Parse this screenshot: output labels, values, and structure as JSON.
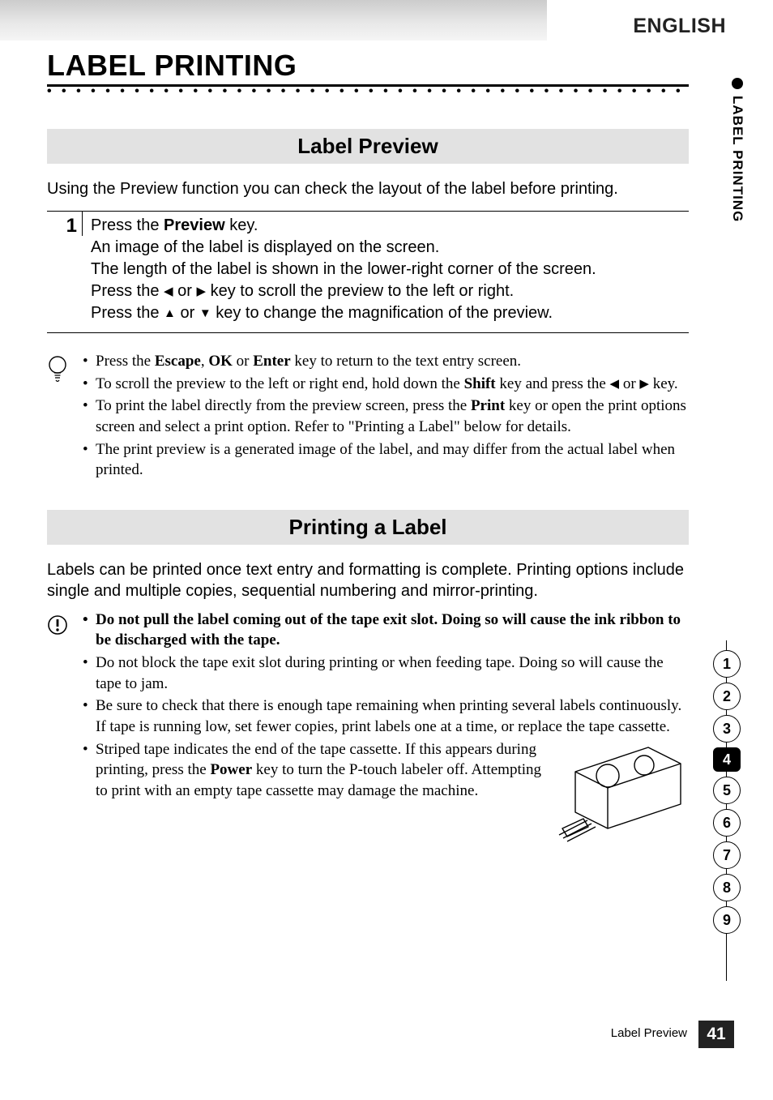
{
  "header": {
    "language": "ENGLISH",
    "chapter_title": "LABEL PRINTING"
  },
  "side_tab": {
    "label": "LABEL PRINTING"
  },
  "sections": {
    "preview": {
      "heading": "Label Preview",
      "intro": "Using the Preview function you can check the layout of the label before printing.",
      "step_number": "1",
      "step_line1_a": "Press the ",
      "step_line1_b": "Preview",
      "step_line1_c": " key.",
      "step_line2": "An image of the label is displayed on the screen.",
      "step_line3": "The length of the label is shown in the lower-right corner of the screen.",
      "step_line4_a": "Press the ",
      "step_line4_b": " or ",
      "step_line4_c": " key to scroll the preview to the left or right.",
      "step_line5_a": "Press the ",
      "step_line5_b": " or ",
      "step_line5_c": " key to change the magnification of the preview.",
      "tips": {
        "t1_a": "Press the ",
        "t1_b": "Escape",
        "t1_c": ", ",
        "t1_d": "OK",
        "t1_e": " or ",
        "t1_f": "Enter",
        "t1_g": " key to return to the text entry screen.",
        "t2_a": "To scroll the preview to the left or right end, hold down the ",
        "t2_b": "Shift",
        "t2_c": " key and press the ",
        "t2_d": " or ",
        "t2_e": " key.",
        "t3_a": "To print the label directly from the preview screen, press the ",
        "t3_b": "Print",
        "t3_c": " key or open the print options screen and select a print option. Refer to \"Printing a Label\" below for details.",
        "t4": "The print preview is a generated image of the label, and may differ from the actual label when printed."
      }
    },
    "printing": {
      "heading": "Printing a Label",
      "intro": "Labels can be printed once text entry and formatting is complete. Printing options include single and multiple copies, sequential numbering and mirror-printing.",
      "warns": {
        "w1": "Do not pull the label coming out of the tape exit slot. Doing so will cause the ink ribbon to be discharged with the tape.",
        "w2": "Do not block the tape exit slot during printing or when feeding tape. Doing so will cause the tape to jam.",
        "w3": "Be sure to check that there is enough tape remaining when printing several labels continuously. If tape is running low, set fewer copies, print labels one at a time, or replace the tape cassette.",
        "w4_a": "Striped tape indicates the end of the tape cassette. If this appears during printing, press the ",
        "w4_b": "Power",
        "w4_c": " key to turn the P-touch labeler off. Attempting to print with an empty tape cassette may damage the machine."
      }
    }
  },
  "index_tabs": [
    "1",
    "2",
    "3",
    "4",
    "5",
    "6",
    "7",
    "8",
    "9"
  ],
  "index_active": "4",
  "footer": {
    "section_ref": "Label Preview",
    "page_number": "41"
  },
  "style": {
    "colors": {
      "page_bg": "#ffffff",
      "section_band": "#e2e2e2",
      "top_gradient_from": "#cccccc",
      "top_gradient_to": "#f5f5f5",
      "text": "#000000",
      "page_badge_bg": "#222222",
      "page_badge_fg": "#ffffff"
    },
    "fonts": {
      "sans": "Arial, Helvetica, sans-serif",
      "serif": "Georgia, 'Times New Roman', serif",
      "chapter_title_pt": 36,
      "section_heading_pt": 26,
      "body_pt": 20,
      "tip_pt": 19,
      "footer_pt": 15,
      "page_badge_pt": 21
    },
    "arrows": {
      "left": "◀",
      "right": "▶",
      "up": "▲",
      "down": "▼"
    }
  }
}
